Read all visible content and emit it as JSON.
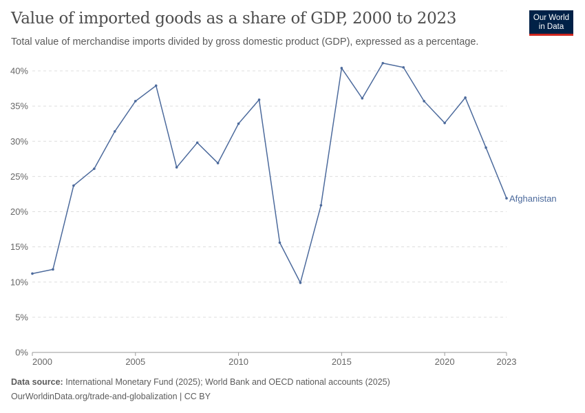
{
  "header": {
    "title": "Value of imported goods as a share of GDP, 2000 to 2023",
    "subtitle": "Total value of merchandise imports divided by gross domestic product (GDP), expressed as a percentage.",
    "logo": "Our World in Data"
  },
  "footer": {
    "source_label": "Data source:",
    "source": "International Monetary Fund (2025); World Bank and OECD national accounts (2025)",
    "url": "OurWorldinData.org/trade-and-globalization | CC BY"
  },
  "chart_data": {
    "type": "line",
    "title": "Value of imported goods as a share of GDP, 2000 to 2023",
    "x": [
      2000,
      2001,
      2002,
      2003,
      2004,
      2005,
      2006,
      2007,
      2008,
      2009,
      2010,
      2011,
      2012,
      2013,
      2014,
      2015,
      2016,
      2017,
      2018,
      2019,
      2020,
      2021,
      2022,
      2023
    ],
    "series": [
      {
        "name": "Afghanistan",
        "color": "#4c6a9c",
        "values": [
          11.2,
          11.8,
          23.7,
          26.1,
          31.4,
          35.7,
          37.9,
          26.3,
          29.8,
          26.9,
          32.5,
          35.9,
          15.6,
          9.9,
          20.9,
          40.4,
          36.1,
          41.1,
          40.5,
          35.7,
          32.6,
          36.2,
          29.1,
          21.9
        ]
      }
    ],
    "xticks": [
      2000,
      2005,
      2010,
      2015,
      2020,
      2023
    ],
    "yticks": [
      0,
      5,
      10,
      15,
      20,
      25,
      30,
      35,
      40
    ],
    "ytick_labels": [
      "0%",
      "5%",
      "10%",
      "15%",
      "20%",
      "25%",
      "30%",
      "35%",
      "40%"
    ],
    "xlim": [
      2000,
      2023
    ],
    "ylim": [
      0,
      40
    ],
    "grid": "horizontal-dashed"
  }
}
